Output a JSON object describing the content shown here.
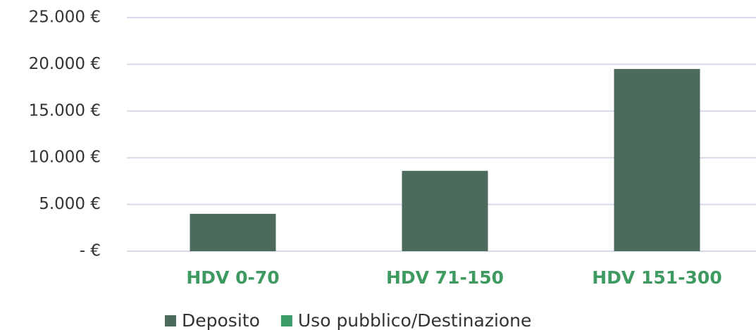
{
  "chart_data": {
    "type": "bar",
    "categories": [
      "HDV 0-70",
      "HDV 71-150",
      "HDV 151-300"
    ],
    "series": [
      {
        "name": "Deposito",
        "color": "#4d6b5c",
        "values": [
          4000,
          8600,
          19500
        ]
      },
      {
        "name": "Uso pubblico/Destinazione",
        "color": "#3a9a68",
        "values": [
          null,
          null,
          null
        ]
      }
    ],
    "ylim": [
      0,
      25000
    ],
    "yticks": [
      {
        "value": 0,
        "label": "-  €"
      },
      {
        "value": 5000,
        "label": "5.000 €"
      },
      {
        "value": 10000,
        "label": "10.000 €"
      },
      {
        "value": 15000,
        "label": "15.000 €"
      },
      {
        "value": 20000,
        "label": "20.000 €"
      },
      {
        "value": 25000,
        "label": "25.000 €"
      }
    ],
    "grid": true,
    "legend": "bottom"
  }
}
